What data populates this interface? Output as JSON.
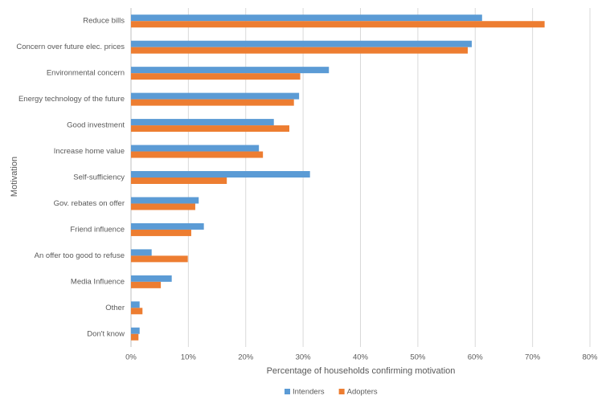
{
  "chart_data": {
    "type": "hbar",
    "categories": [
      "Reduce bills",
      "Concern over future elec. prices",
      "Environmental concern",
      "Energy technology of the future",
      "Good investment",
      "Increase home value",
      "Self-sufficiency",
      "Gov. rebates on offer",
      "Friend influence",
      "An offer too good to refuse",
      "Media Influence",
      "Other",
      "Don't know"
    ],
    "series": [
      {
        "name": "Intenders",
        "color": "#5b9bd5",
        "values": [
          61.2,
          59.4,
          34.5,
          29.3,
          24.9,
          22.3,
          31.2,
          11.8,
          12.7,
          3.6,
          7.1,
          1.5,
          1.5
        ]
      },
      {
        "name": "Adopters",
        "color": "#ed7d31",
        "values": [
          72.1,
          58.7,
          29.5,
          28.4,
          27.6,
          23.0,
          16.7,
          11.2,
          10.5,
          9.9,
          5.2,
          2.0,
          1.3
        ]
      }
    ],
    "xlabel": "Percentage of households confirming motivation",
    "ylabel": "Motivation",
    "xlim": [
      0,
      80
    ],
    "xticks": [
      {
        "value": 0,
        "label": "0%"
      },
      {
        "value": 10,
        "label": "10%"
      },
      {
        "value": 20,
        "label": "20%"
      },
      {
        "value": 30,
        "label": "30%"
      },
      {
        "value": 40,
        "label": "40%"
      },
      {
        "value": 50,
        "label": "50%"
      },
      {
        "value": 60,
        "label": "60%"
      },
      {
        "value": 70,
        "label": "70%"
      },
      {
        "value": 80,
        "label": "80%"
      }
    ],
    "grid": true,
    "legend": "bottom"
  }
}
